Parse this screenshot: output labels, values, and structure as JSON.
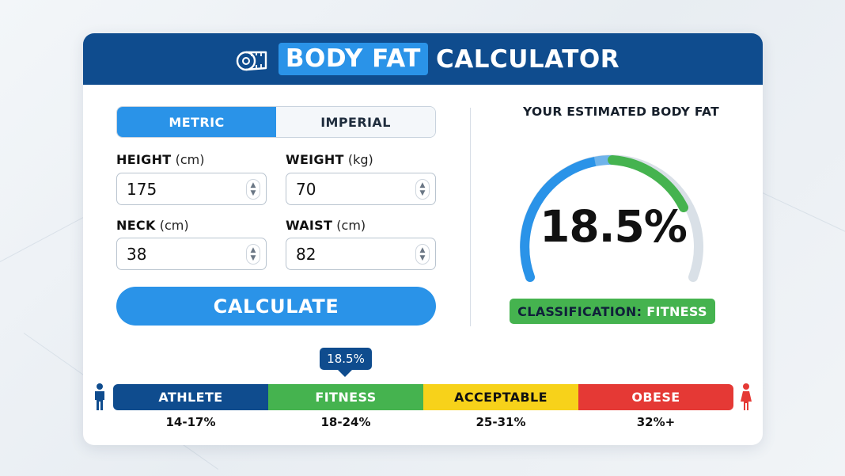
{
  "header": {
    "title_highlight": "BODY FAT",
    "title_rest": "CALCULATOR",
    "icon": "measuring-tape-icon",
    "bg_color": "#0f4c8e",
    "accent_color": "#2a93e8"
  },
  "units": {
    "options": [
      "METRIC",
      "IMPERIAL"
    ],
    "selected": "METRIC"
  },
  "fields": {
    "height": {
      "label": "HEIGHT",
      "unit": "(cm)",
      "value": "175"
    },
    "weight": {
      "label": "WEIGHT",
      "unit": "(kg)",
      "value": "70"
    },
    "neck": {
      "label": "NECK",
      "unit": "(cm)",
      "value": "38"
    },
    "waist": {
      "label": "WAIST",
      "unit": "(cm)",
      "value": "82"
    }
  },
  "calculate_label": "CALCULATE",
  "result": {
    "title": "YOUR ESTIMATED BODY FAT",
    "value": "18.5%",
    "classification_label": "CLASSIFICATION:",
    "classification_value": "FITNESS",
    "classification_color": "#45b34f"
  },
  "scale": {
    "marker_label": "18.5%",
    "segments": [
      {
        "label": "ATHLETE",
        "range": "14-17%",
        "color": "#0f4c8e",
        "text_color": "#ffffff"
      },
      {
        "label": "FITNESS",
        "range": "18-24%",
        "color": "#45b34f",
        "text_color": "#ffffff"
      },
      {
        "label": "ACCEPTABLE",
        "range": "25-31%",
        "color": "#f7d21a",
        "text_color": "#111111"
      },
      {
        "label": "OBESE",
        "range": "32%+",
        "color": "#e53935",
        "text_color": "#ffffff"
      }
    ],
    "male_icon": "male-person-icon",
    "female_icon": "female-person-icon"
  }
}
